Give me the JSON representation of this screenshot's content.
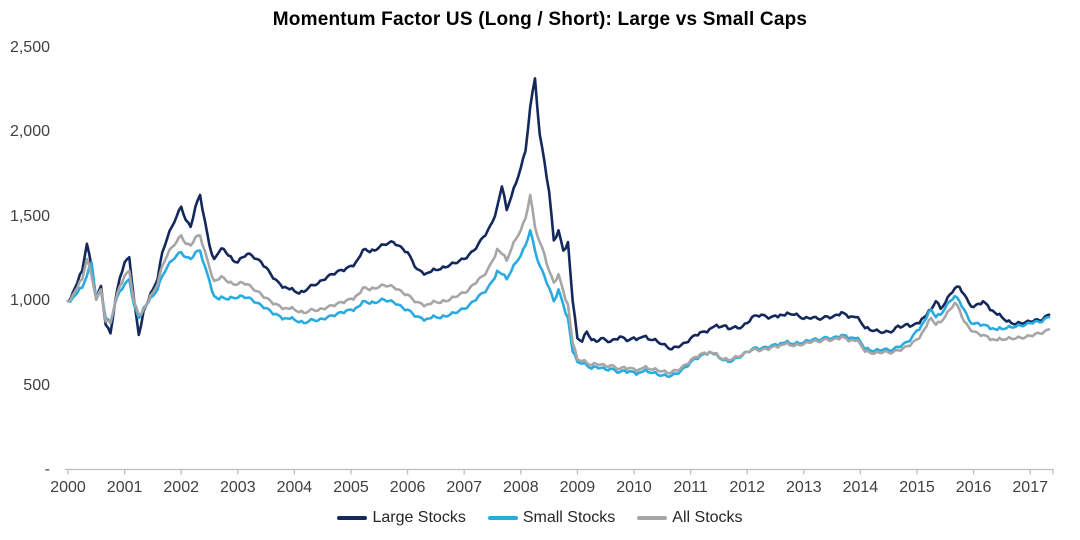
{
  "title": "Momentum Factor US (Long / Short): Large vs Small Caps",
  "colors": {
    "axis": "#BFBFBF",
    "axis_labels": "#404040",
    "title": "#000000",
    "background": "#FFFFFF"
  },
  "chart_data": {
    "type": "line",
    "title": "Momentum Factor US (Long / Short): Large vs Small Caps",
    "xlabel": "",
    "ylabel": "",
    "grid": false,
    "legend_position": "bottom",
    "x_axis_range": [
      2000,
      2017.45
    ],
    "y_axis_range": [
      0,
      2500
    ],
    "x_tick_years": [
      2000,
      2001,
      2002,
      2003,
      2004,
      2005,
      2006,
      2007,
      2008,
      2009,
      2010,
      2011,
      2012,
      2013,
      2014,
      2015,
      2016,
      2017
    ],
    "y_ticks": [
      {
        "label": "2,500",
        "value": 2500
      },
      {
        "label": "2,000",
        "value": 2000
      },
      {
        "label": "1,500",
        "value": 1500
      },
      {
        "label": "1,000",
        "value": 1000
      },
      {
        "label": "500",
        "value": 500
      },
      {
        "label": "-",
        "value": 0
      }
    ],
    "x_start_year": 2000,
    "points_per_year": 12,
    "series": [
      {
        "name": "Large Stocks",
        "color": "#14295B",
        "values": [
          1000,
          1050,
          1110,
          1180,
          1340,
          1200,
          1010,
          1090,
          860,
          810,
          1000,
          1140,
          1230,
          1260,
          1010,
          800,
          940,
          1000,
          1070,
          1130,
          1290,
          1370,
          1440,
          1500,
          1560,
          1480,
          1440,
          1560,
          1630,
          1480,
          1330,
          1250,
          1290,
          1310,
          1270,
          1240,
          1230,
          1260,
          1280,
          1270,
          1250,
          1230,
          1200,
          1160,
          1130,
          1100,
          1085,
          1070,
          1060,
          1045,
          1055,
          1080,
          1095,
          1105,
          1125,
          1145,
          1160,
          1175,
          1185,
          1195,
          1210,
          1230,
          1270,
          1310,
          1290,
          1300,
          1320,
          1335,
          1345,
          1350,
          1330,
          1310,
          1290,
          1240,
          1190,
          1175,
          1165,
          1175,
          1185,
          1190,
          1200,
          1215,
          1225,
          1240,
          1250,
          1275,
          1300,
          1340,
          1380,
          1420,
          1470,
          1560,
          1680,
          1540,
          1620,
          1700,
          1790,
          1890,
          2150,
          2320,
          1990,
          1830,
          1650,
          1360,
          1420,
          1300,
          1350,
          1000,
          780,
          760,
          820,
          770,
          760,
          780,
          770,
          760,
          775,
          790,
          780,
          770,
          785,
          780,
          790,
          775,
          770,
          760,
          745,
          730,
          715,
          730,
          740,
          755,
          780,
          800,
          815,
          820,
          835,
          850,
          845,
          855,
          835,
          845,
          840,
          850,
          870,
          905,
          915,
          920,
          910,
          905,
          915,
          920,
          915,
          925,
          920,
          910,
          895,
          900,
          905,
          895,
          900,
          910,
          905,
          920,
          935,
          920,
          910,
          905,
          880,
          840,
          830,
          825,
          820,
          815,
          820,
          825,
          855,
          850,
          865,
          855,
          870,
          895,
          915,
          950,
          1000,
          955,
          990,
          1040,
          1075,
          1085,
          1040,
          990,
          965,
          985,
          1000,
          975,
          945,
          920,
          905,
          880,
          870,
          865,
          870,
          875,
          880,
          890,
          885,
          905,
          920
        ]
      },
      {
        "name": "Small Stocks",
        "color": "#29ABE2",
        "values": [
          1000,
          1020,
          1050,
          1080,
          1150,
          1230,
          1010,
          1060,
          900,
          870,
          990,
          1060,
          1100,
          1130,
          980,
          900,
          960,
          990,
          1030,
          1070,
          1150,
          1200,
          1240,
          1270,
          1290,
          1260,
          1250,
          1290,
          1300,
          1210,
          1120,
          1030,
          1010,
          1020,
          1010,
          1020,
          1020,
          1030,
          1020,
          1010,
          990,
          975,
          960,
          940,
          925,
          910,
          900,
          895,
          890,
          875,
          870,
          880,
          890,
          885,
          895,
          905,
          915,
          925,
          935,
          945,
          950,
          960,
          975,
          1000,
          985,
          990,
          1000,
          1010,
          1000,
          995,
          980,
          960,
          950,
          930,
          910,
          900,
          895,
          900,
          905,
          900,
          910,
          920,
          930,
          945,
          955,
          975,
          1000,
          1030,
          1050,
          1080,
          1120,
          1180,
          1160,
          1130,
          1180,
          1230,
          1270,
          1330,
          1420,
          1300,
          1210,
          1150,
          1080,
          1000,
          1070,
          980,
          900,
          700,
          640,
          630,
          620,
          600,
          610,
          605,
          595,
          600,
          590,
          580,
          590,
          585,
          580,
          575,
          585,
          580,
          575,
          565,
          560,
          555,
          560,
          570,
          590,
          610,
          640,
          660,
          675,
          690,
          700,
          685,
          665,
          650,
          640,
          650,
          665,
          680,
          700,
          715,
          725,
          720,
          730,
          735,
          745,
          750,
          755,
          750,
          745,
          750,
          755,
          765,
          775,
          770,
          780,
          785,
          780,
          790,
          800,
          795,
          785,
          780,
          760,
          715,
          710,
          705,
          710,
          715,
          710,
          715,
          730,
          745,
          760,
          790,
          827,
          860,
          900,
          950,
          905,
          920,
          960,
          1000,
          1030,
          1000,
          950,
          890,
          865,
          870,
          860,
          855,
          840,
          830,
          835,
          840,
          845,
          850,
          855,
          860,
          870,
          880,
          875,
          895,
          905
        ]
      },
      {
        "name": "All Stocks",
        "color": "#A6A6A6",
        "values": [
          1000,
          1035,
          1080,
          1130,
          1250,
          1150,
          1010,
          1070,
          880,
          875,
          995,
          1090,
          1150,
          1180,
          1000,
          920,
          950,
          995,
          1050,
          1100,
          1210,
          1270,
          1320,
          1350,
          1390,
          1340,
          1330,
          1380,
          1390,
          1300,
          1200,
          1120,
          1130,
          1140,
          1110,
          1100,
          1100,
          1110,
          1100,
          1080,
          1060,
          1040,
          1020,
          1000,
          985,
          970,
          960,
          955,
          950,
          935,
          930,
          940,
          950,
          945,
          955,
          965,
          975,
          985,
          995,
          1005,
          1015,
          1030,
          1050,
          1083,
          1065,
          1075,
          1085,
          1095,
          1090,
          1085,
          1070,
          1050,
          1040,
          1015,
          995,
          985,
          980,
          985,
          995,
          990,
          1000,
          1010,
          1025,
          1040,
          1050,
          1070,
          1100,
          1130,
          1150,
          1190,
          1240,
          1310,
          1280,
          1240,
          1310,
          1370,
          1420,
          1490,
          1630,
          1440,
          1350,
          1280,
          1180,
          1110,
          1160,
          1060,
          980,
          750,
          655,
          645,
          635,
          620,
          630,
          625,
          615,
          620,
          610,
          600,
          610,
          605,
          600,
          595,
          605,
          600,
          595,
          590,
          585,
          575,
          580,
          590,
          605,
          625,
          650,
          670,
          685,
          695,
          700,
          690,
          670,
          655,
          650,
          660,
          670,
          685,
          700,
          710,
          715,
          710,
          720,
          725,
          735,
          740,
          745,
          740,
          735,
          740,
          745,
          755,
          765,
          760,
          770,
          775,
          770,
          780,
          790,
          780,
          770,
          765,
          745,
          700,
          695,
          690,
          695,
          700,
          695,
          700,
          710,
          720,
          735,
          755,
          774,
          810,
          850,
          900,
          860,
          875,
          910,
          950,
          990,
          950,
          880,
          845,
          820,
          810,
          800,
          790,
          775,
          768,
          772,
          775,
          778,
          780,
          783,
          786,
          795,
          805,
          810,
          820,
          833
        ]
      }
    ]
  },
  "legend": {
    "items": [
      {
        "label": "Large Stocks"
      },
      {
        "label": "Small Stocks"
      },
      {
        "label": "All Stocks"
      }
    ]
  }
}
